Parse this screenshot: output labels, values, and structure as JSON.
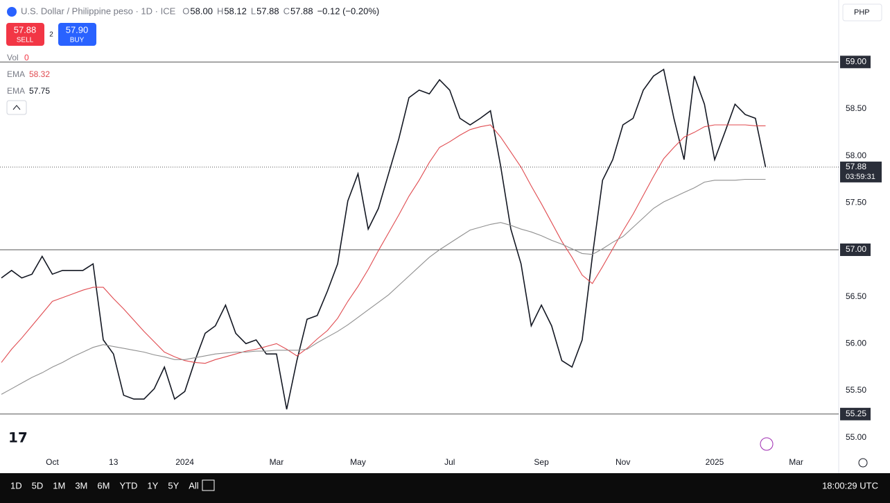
{
  "ui": {
    "title": "U.S. Dollar / Philippine peso · 1D · ICE",
    "ohlc": [
      {
        "k": "O",
        "v": "58.00"
      },
      {
        "k": "H",
        "v": "58.12"
      },
      {
        "k": "L",
        "v": "57.88"
      },
      {
        "k": "C",
        "v": "57.88"
      }
    ],
    "change": "−0.12 (−0.20%)",
    "sell": {
      "price": "57.88",
      "label": "SELL"
    },
    "spread": "2",
    "buy": {
      "price": "57.90",
      "label": "BUY"
    },
    "indicators": [
      {
        "name": "Vol",
        "value": "0"
      },
      {
        "name": "EMA",
        "value": "58.32"
      },
      {
        "name": "EMA",
        "value": "57.75"
      }
    ],
    "currency": "PHP",
    "ranges": [
      "1D",
      "5D",
      "1M",
      "3M",
      "6M",
      "YTD",
      "1Y",
      "5Y",
      "All"
    ],
    "clock": "18:00:29 UTC"
  },
  "chart_data": {
    "type": "line",
    "categories": [
      null,
      null,
      null,
      null,
      null,
      "Oct",
      null,
      null,
      null,
      null,
      null,
      "13",
      null,
      null,
      null,
      null,
      null,
      null,
      "2024",
      null,
      null,
      null,
      null,
      null,
      null,
      null,
      null,
      "Mar",
      null,
      null,
      null,
      null,
      null,
      null,
      null,
      "May",
      null,
      null,
      null,
      null,
      null,
      null,
      null,
      null,
      "Jul",
      null,
      null,
      null,
      null,
      null,
      null,
      null,
      null,
      "Sep",
      null,
      null,
      null,
      null,
      null,
      null,
      null,
      "Nov",
      null,
      null,
      null,
      null,
      null,
      null,
      null,
      null,
      "2025",
      null,
      null,
      null,
      null,
      null,
      null,
      null,
      "Mar",
      null
    ],
    "series": [
      {
        "color": "#131722",
        "width": 1.6,
        "values": [
          56.7,
          56.78,
          56.7,
          56.74,
          56.93,
          56.74,
          56.78,
          56.78,
          56.78,
          56.85,
          56.04,
          55.89,
          55.45,
          55.41,
          55.41,
          55.52,
          55.75,
          55.41,
          55.49,
          55.82,
          56.11,
          56.19,
          56.41,
          56.11,
          56.0,
          56.04,
          55.89,
          55.89,
          55.3,
          55.82,
          56.26,
          56.3,
          56.56,
          56.85,
          57.52,
          57.81,
          57.22,
          57.44,
          57.81,
          58.18,
          58.62,
          58.7,
          58.66,
          58.81,
          58.7,
          58.4,
          58.33,
          58.4,
          58.48,
          57.89,
          57.22,
          56.85,
          56.19,
          56.41,
          56.19,
          55.82,
          55.75,
          56.04,
          56.93,
          57.74,
          57.96,
          58.33,
          58.4,
          58.7,
          58.85,
          58.92,
          58.4,
          57.96,
          58.85,
          58.55,
          57.96,
          58.25,
          58.55,
          58.44,
          58.4,
          57.88,
          null,
          null,
          null,
          null
        ]
      },
      {
        "color": "#e04a4f",
        "width": 1.1,
        "values": [
          55.8,
          55.94,
          56.06,
          56.19,
          56.32,
          56.45,
          56.49,
          56.53,
          56.57,
          56.6,
          56.6,
          56.48,
          56.37,
          56.25,
          56.13,
          56.02,
          55.91,
          55.86,
          55.82,
          55.8,
          55.79,
          55.83,
          55.86,
          55.89,
          55.92,
          55.94,
          55.97,
          56.0,
          55.94,
          55.87,
          55.95,
          56.05,
          56.14,
          56.27,
          56.45,
          56.61,
          56.79,
          56.99,
          57.18,
          57.37,
          57.57,
          57.74,
          57.93,
          58.09,
          58.15,
          58.22,
          58.28,
          58.31,
          58.33,
          58.2,
          58.04,
          57.88,
          57.68,
          57.49,
          57.29,
          57.09,
          56.92,
          56.73,
          56.64,
          56.82,
          57.01,
          57.2,
          57.38,
          57.58,
          57.78,
          57.97,
          58.09,
          58.2,
          58.25,
          58.31,
          58.33,
          58.33,
          58.33,
          58.33,
          58.32,
          58.32,
          null,
          null,
          null,
          null
        ]
      },
      {
        "color": "#8f8f8f",
        "width": 1.1,
        "values": [
          55.46,
          55.52,
          55.58,
          55.64,
          55.69,
          55.75,
          55.8,
          55.86,
          55.91,
          55.96,
          55.99,
          55.97,
          55.95,
          55.93,
          55.91,
          55.88,
          55.86,
          55.83,
          55.83,
          55.85,
          55.87,
          55.89,
          55.9,
          55.91,
          55.91,
          55.92,
          55.92,
          55.93,
          55.93,
          55.93,
          55.94,
          56.01,
          56.07,
          56.13,
          56.2,
          56.28,
          56.36,
          56.44,
          56.52,
          56.62,
          56.72,
          56.82,
          56.92,
          57.0,
          57.07,
          57.14,
          57.21,
          57.24,
          57.27,
          57.29,
          57.26,
          57.22,
          57.19,
          57.15,
          57.1,
          57.06,
          57.01,
          56.96,
          56.95,
          57.01,
          57.08,
          57.14,
          57.24,
          57.34,
          57.44,
          57.51,
          57.56,
          57.61,
          57.66,
          57.72,
          57.74,
          57.74,
          57.74,
          57.75,
          57.75,
          57.75,
          null,
          null,
          null,
          null
        ]
      }
    ],
    "ylim": [
      54.82,
      59.66
    ],
    "yticks": [
      {
        "value": 55,
        "label": "55.00"
      },
      {
        "value": 55.5,
        "label": "55.50"
      },
      {
        "value": 56,
        "label": "56.00"
      },
      {
        "value": 56.5,
        "label": "56.50"
      },
      {
        "value": 57.5,
        "label": "57.50"
      },
      {
        "value": 58,
        "label": "58.00"
      },
      {
        "value": 58.5,
        "label": "58.50"
      }
    ],
    "hlines": [
      {
        "value": 59,
        "label": "59.00"
      },
      {
        "value": 57,
        "label": "57.00"
      },
      {
        "value": 55.25,
        "label": "55.25"
      }
    ],
    "last": {
      "value": 57.88,
      "label": "57.88",
      "countdown": "03:59:31"
    }
  }
}
